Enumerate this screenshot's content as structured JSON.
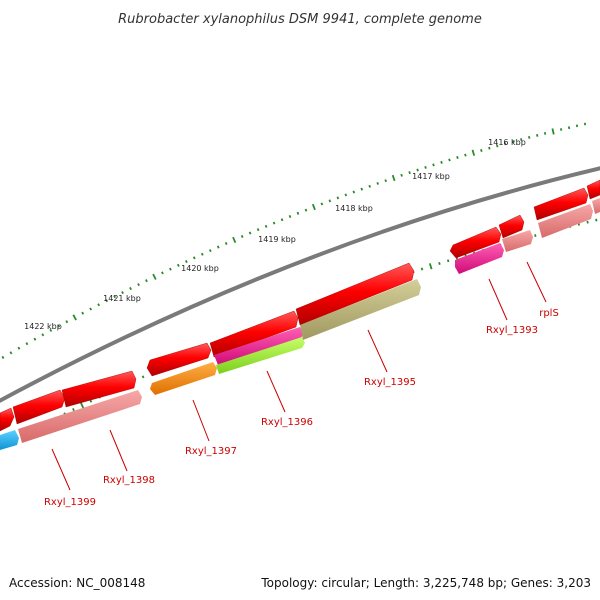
{
  "title": "Rubrobacter xylanophilus DSM 9941, complete genome",
  "footer": {
    "accession": "Accession: NC_008148",
    "summary": "Topology: circular; Length: 3,225,748 bp; Genes: 3,203"
  },
  "scale_labels": [
    "1416 kbp",
    "1417 kbp",
    "1418 kbp",
    "1419 kbp",
    "1420 kbp",
    "1421 kbp",
    "1422 kbp"
  ],
  "gene_labels": [
    "Rxyl_1399",
    "Rxyl_1398",
    "Rxyl_1397",
    "Rxyl_1396",
    "Rxyl_1395",
    "Rxyl_1393",
    "rplS"
  ],
  "colors": {
    "backbone": "#7a7a7a",
    "cds": "#ff0000",
    "label": "#cc0000",
    "tick": "#2a8a2a",
    "pink": "#f08080",
    "magenta": "#ff1493",
    "lime": "#99ee33",
    "olive": "#b7b077",
    "orange": "#ff8c00",
    "cyan": "#1ab2ee"
  }
}
